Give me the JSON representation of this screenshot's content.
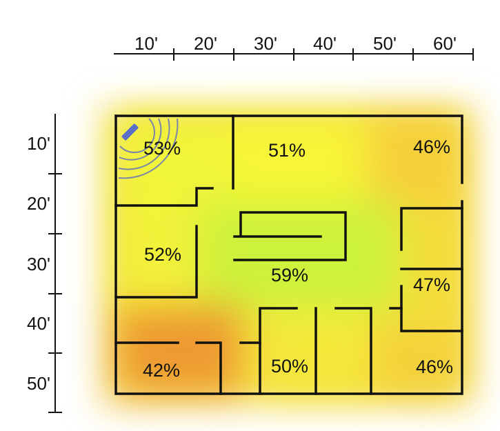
{
  "scale": {
    "top_labels": [
      "10'",
      "20'",
      "30'",
      "40'",
      "50'",
      "60'"
    ],
    "left_labels": [
      "10'",
      "20'",
      "30'",
      "40'",
      "50'"
    ]
  },
  "rooms": [
    {
      "id": "top-left",
      "signal": "53%",
      "color": "#f1f53a"
    },
    {
      "id": "top-middle",
      "signal": "51%",
      "color": "#f7f538"
    },
    {
      "id": "top-right",
      "signal": "46%",
      "color": "#f6cf3a"
    },
    {
      "id": "mid-left",
      "signal": "52%",
      "color": "#f2f23a"
    },
    {
      "id": "center",
      "signal": "59%",
      "color": "#cdf23a"
    },
    {
      "id": "right-small",
      "signal": "47%",
      "color": "#f4dd3b"
    },
    {
      "id": "bottom-left",
      "signal": "42%",
      "color": "#ee9a32"
    },
    {
      "id": "bottom-middle",
      "signal": "50%",
      "color": "#f5e83a"
    },
    {
      "id": "bottom-right",
      "signal": "46%",
      "color": "#f4d03a"
    }
  ],
  "router": {
    "icon": "wifi-router-icon",
    "color": "#5a6fc8"
  }
}
